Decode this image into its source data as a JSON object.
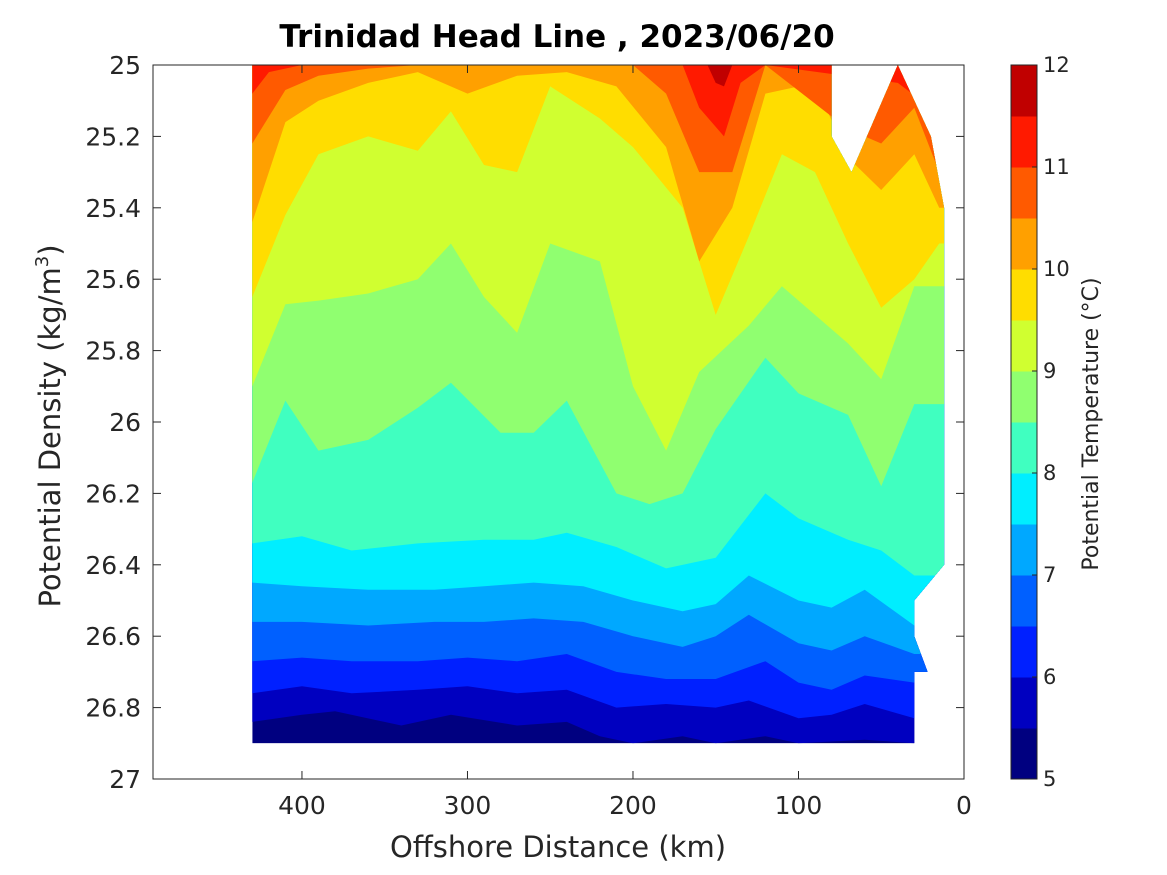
{
  "chart_data": {
    "type": "filled-contour",
    "title": "Trinidad Head Line , 2023/06/20",
    "xlabel": "Offshore Distance (km)",
    "ylabel_main": "Potential Density (kg/m",
    "ylabel_sup": "3",
    "ylabel_end": ")",
    "xlim": [
      490,
      0
    ],
    "ylim": [
      27,
      25
    ],
    "x_reversed": true,
    "y_reversed": true,
    "x_ticks": [
      400,
      300,
      200,
      100,
      0
    ],
    "x_tick_labels": [
      "400",
      "300",
      "200",
      "100",
      "0"
    ],
    "y_ticks": [
      25,
      25.2,
      25.4,
      25.6,
      25.8,
      26,
      26.2,
      26.4,
      26.6,
      26.8,
      27
    ],
    "y_tick_labels": [
      "25",
      "25.2",
      "25.4",
      "25.6",
      "25.8",
      "26",
      "26.2",
      "26.4",
      "26.6",
      "26.8",
      "27"
    ],
    "data_extent": {
      "x_max": 430,
      "x_min": 12,
      "sigma_top": 25,
      "sigma_bottom": 26.9
    },
    "colorbar": {
      "label": "Potential Temperature (°C)",
      "range": [
        5,
        12
      ],
      "tick_values": [
        5,
        6,
        7,
        8,
        9,
        10,
        11,
        12
      ],
      "tick_labels": [
        "5",
        "6",
        "7",
        "8",
        "9",
        "10",
        "11",
        "12"
      ],
      "level_step": 0.5,
      "colors": [
        "#000080",
        "#0000c0",
        "#0020ff",
        "#0060ff",
        "#00a8ff",
        "#00eeff",
        "#40ffc0",
        "#90ff70",
        "#d0ff30",
        "#ffdd00",
        "#ffa000",
        "#ff5a00",
        "#ff1a00",
        "#c00000"
      ]
    },
    "isotherm_levels": [
      5.5,
      6,
      6.5,
      7,
      7.5,
      8,
      8.5,
      9,
      9.5,
      10,
      10.5,
      11,
      11.5
    ],
    "isopycnal_depth_of_level": {
      "5.5": [
        [
          430,
          26.84
        ],
        [
          400,
          26.82
        ],
        [
          380,
          26.81
        ],
        [
          340,
          26.85
        ],
        [
          310,
          26.82
        ],
        [
          270,
          26.85
        ],
        [
          240,
          26.84
        ],
        [
          220,
          26.88
        ],
        [
          200,
          26.9
        ],
        [
          170,
          26.88
        ],
        [
          150,
          26.9
        ],
        [
          120,
          26.88
        ],
        [
          100,
          26.9
        ],
        [
          60,
          26.89
        ],
        [
          30,
          26.9
        ]
      ],
      "6": [
        [
          430,
          26.76
        ],
        [
          400,
          26.74
        ],
        [
          370,
          26.76
        ],
        [
          330,
          26.75
        ],
        [
          300,
          26.74
        ],
        [
          270,
          26.76
        ],
        [
          240,
          26.75
        ],
        [
          210,
          26.8
        ],
        [
          180,
          26.79
        ],
        [
          150,
          26.8
        ],
        [
          130,
          26.78
        ],
        [
          100,
          26.83
        ],
        [
          80,
          26.82
        ],
        [
          60,
          26.79
        ],
        [
          30,
          26.83
        ]
      ],
      "6.5": [
        [
          430,
          26.67
        ],
        [
          400,
          26.66
        ],
        [
          370,
          26.67
        ],
        [
          330,
          26.67
        ],
        [
          300,
          26.66
        ],
        [
          270,
          26.67
        ],
        [
          240,
          26.65
        ],
        [
          210,
          26.7
        ],
        [
          180,
          26.72
        ],
        [
          150,
          26.72
        ],
        [
          120,
          26.67
        ],
        [
          100,
          26.73
        ],
        [
          80,
          26.75
        ],
        [
          60,
          26.71
        ],
        [
          30,
          26.73
        ]
      ],
      "7": [
        [
          430,
          26.56
        ],
        [
          400,
          26.56
        ],
        [
          360,
          26.57
        ],
        [
          320,
          26.56
        ],
        [
          290,
          26.56
        ],
        [
          260,
          26.55
        ],
        [
          230,
          26.56
        ],
        [
          200,
          26.6
        ],
        [
          170,
          26.63
        ],
        [
          150,
          26.6
        ],
        [
          130,
          26.54
        ],
        [
          100,
          26.62
        ],
        [
          80,
          26.64
        ],
        [
          60,
          26.6
        ],
        [
          30,
          26.65
        ]
      ],
      "7.5": [
        [
          430,
          26.45
        ],
        [
          400,
          26.46
        ],
        [
          360,
          26.47
        ],
        [
          320,
          26.47
        ],
        [
          290,
          26.46
        ],
        [
          260,
          26.45
        ],
        [
          230,
          26.46
        ],
        [
          200,
          26.5
        ],
        [
          170,
          26.53
        ],
        [
          150,
          26.51
        ],
        [
          130,
          26.43
        ],
        [
          100,
          26.5
        ],
        [
          80,
          26.52
        ],
        [
          60,
          26.47
        ],
        [
          30,
          26.57
        ]
      ],
      "8": [
        [
          430,
          26.34
        ],
        [
          400,
          26.32
        ],
        [
          370,
          26.36
        ],
        [
          330,
          26.34
        ],
        [
          290,
          26.33
        ],
        [
          260,
          26.33
        ],
        [
          240,
          26.31
        ],
        [
          210,
          26.35
        ],
        [
          180,
          26.41
        ],
        [
          150,
          26.38
        ],
        [
          120,
          26.2
        ],
        [
          100,
          26.27
        ],
        [
          70,
          26.33
        ],
        [
          50,
          26.36
        ],
        [
          30,
          26.43
        ]
      ],
      "8.5": [
        [
          430,
          26.17
        ],
        [
          410,
          25.94
        ],
        [
          390,
          26.08
        ],
        [
          360,
          26.05
        ],
        [
          330,
          25.96
        ],
        [
          310,
          25.89
        ],
        [
          280,
          26.03
        ],
        [
          260,
          26.03
        ],
        [
          240,
          25.94
        ],
        [
          210,
          26.2
        ],
        [
          190,
          26.23
        ],
        [
          170,
          26.2
        ],
        [
          150,
          26.02
        ],
        [
          120,
          25.82
        ],
        [
          100,
          25.92
        ],
        [
          70,
          25.98
        ],
        [
          50,
          26.18
        ],
        [
          30,
          25.95
        ]
      ],
      "9": [
        [
          430,
          25.9
        ],
        [
          410,
          25.67
        ],
        [
          390,
          25.66
        ],
        [
          360,
          25.64
        ],
        [
          330,
          25.6
        ],
        [
          310,
          25.5
        ],
        [
          290,
          25.65
        ],
        [
          270,
          25.75
        ],
        [
          250,
          25.5
        ],
        [
          220,
          25.55
        ],
        [
          200,
          25.9
        ],
        [
          180,
          26.08
        ],
        [
          160,
          25.86
        ],
        [
          130,
          25.73
        ],
        [
          110,
          25.62
        ],
        [
          90,
          25.7
        ],
        [
          70,
          25.78
        ],
        [
          50,
          25.88
        ],
        [
          30,
          25.62
        ]
      ],
      "9.5": [
        [
          430,
          25.65
        ],
        [
          410,
          25.42
        ],
        [
          390,
          25.25
        ],
        [
          360,
          25.2
        ],
        [
          330,
          25.24
        ],
        [
          310,
          25.13
        ],
        [
          290,
          25.28
        ],
        [
          270,
          25.3
        ],
        [
          250,
          25.06
        ],
        [
          220,
          25.15
        ],
        [
          200,
          25.23
        ],
        [
          170,
          25.4
        ],
        [
          150,
          25.7
        ],
        [
          130,
          25.48
        ],
        [
          110,
          25.25
        ],
        [
          90,
          25.3
        ],
        [
          70,
          25.5
        ],
        [
          50,
          25.68
        ],
        [
          30,
          25.6
        ],
        [
          15,
          25.5
        ]
      ],
      "10": [
        [
          430,
          25.44
        ],
        [
          410,
          25.16
        ],
        [
          390,
          25.1
        ],
        [
          360,
          25.05
        ],
        [
          330,
          25.02
        ],
        [
          300,
          25.08
        ],
        [
          270,
          25.03
        ],
        [
          240,
          25.02
        ],
        [
          210,
          25.06
        ],
        [
          180,
          25.23
        ],
        [
          160,
          25.55
        ],
        [
          140,
          25.4
        ],
        [
          120,
          25.08
        ],
        [
          90,
          25.05
        ],
        [
          70,
          25.26
        ],
        [
          50,
          25.35
        ],
        [
          30,
          25.25
        ],
        [
          15,
          25.4
        ]
      ],
      "10.5": [
        [
          430,
          25.22
        ],
        [
          410,
          25.07
        ],
        [
          390,
          25.03
        ],
        [
          360,
          25.01
        ],
        [
          330,
          25.0
        ],
        [
          200,
          25.0
        ],
        [
          180,
          25.08
        ],
        [
          160,
          25.3
        ],
        [
          140,
          25.3
        ],
        [
          120,
          25.0
        ],
        [
          70,
          25.18
        ],
        [
          50,
          25.22
        ],
        [
          30,
          25.12
        ],
        [
          15,
          25.3
        ]
      ],
      "11": [
        [
          430,
          25.08
        ],
        [
          420,
          25.02
        ],
        [
          400,
          25.0
        ],
        [
          170,
          25.0
        ],
        [
          160,
          25.12
        ],
        [
          145,
          25.2
        ],
        [
          135,
          25.05
        ],
        [
          120,
          25.0
        ],
        [
          40,
          25.05
        ],
        [
          20,
          25.12
        ],
        [
          12,
          25.3
        ]
      ],
      "11.5": [
        [
          155,
          25.0
        ],
        [
          150,
          25.05
        ],
        [
          145,
          25.06
        ],
        [
          140,
          25.0
        ]
      ]
    }
  }
}
